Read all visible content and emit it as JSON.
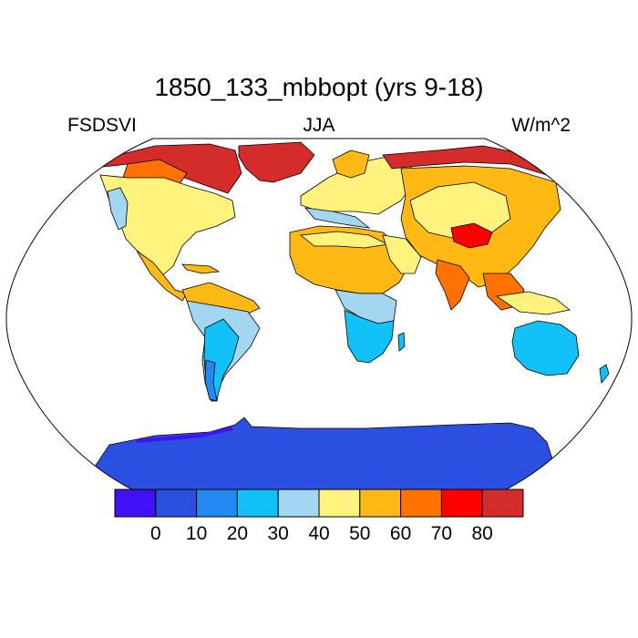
{
  "title": "1850_133_mbbopt (yrs 9-18)",
  "left_label": "FSDSVI",
  "center_label": "JJA",
  "right_label": "W/m^2",
  "colorbar": {
    "colors": [
      "#4012f5",
      "#2b4fe0",
      "#2389f2",
      "#13c1f9",
      "#a3d6f1",
      "#fff27d",
      "#ffb914",
      "#ff7200",
      "#ff0000",
      "#d42b2b"
    ],
    "labels": [
      "0",
      "10",
      "20",
      "30",
      "40",
      "50",
      "60",
      "70",
      "80"
    ]
  },
  "regions": [
    {
      "name": "Antarctica",
      "color": "#2b4fe0"
    },
    {
      "name": "Greenland",
      "color": "#d42b2b"
    },
    {
      "name": "Canadian Arctic",
      "color": "#d42b2b"
    },
    {
      "name": "North America",
      "color": "#fff27d"
    },
    {
      "name": "South America",
      "color": "#a3d6f1"
    },
    {
      "name": "Europe",
      "color": "#fff27d"
    },
    {
      "name": "Asia",
      "color": "#ffb914"
    },
    {
      "name": "Tibetan Plateau",
      "color": "#ff0000"
    },
    {
      "name": "Africa",
      "color": "#ffb914"
    },
    {
      "name": "Southern Africa",
      "color": "#13c1f9"
    },
    {
      "name": "Australia",
      "color": "#13c1f9"
    }
  ]
}
